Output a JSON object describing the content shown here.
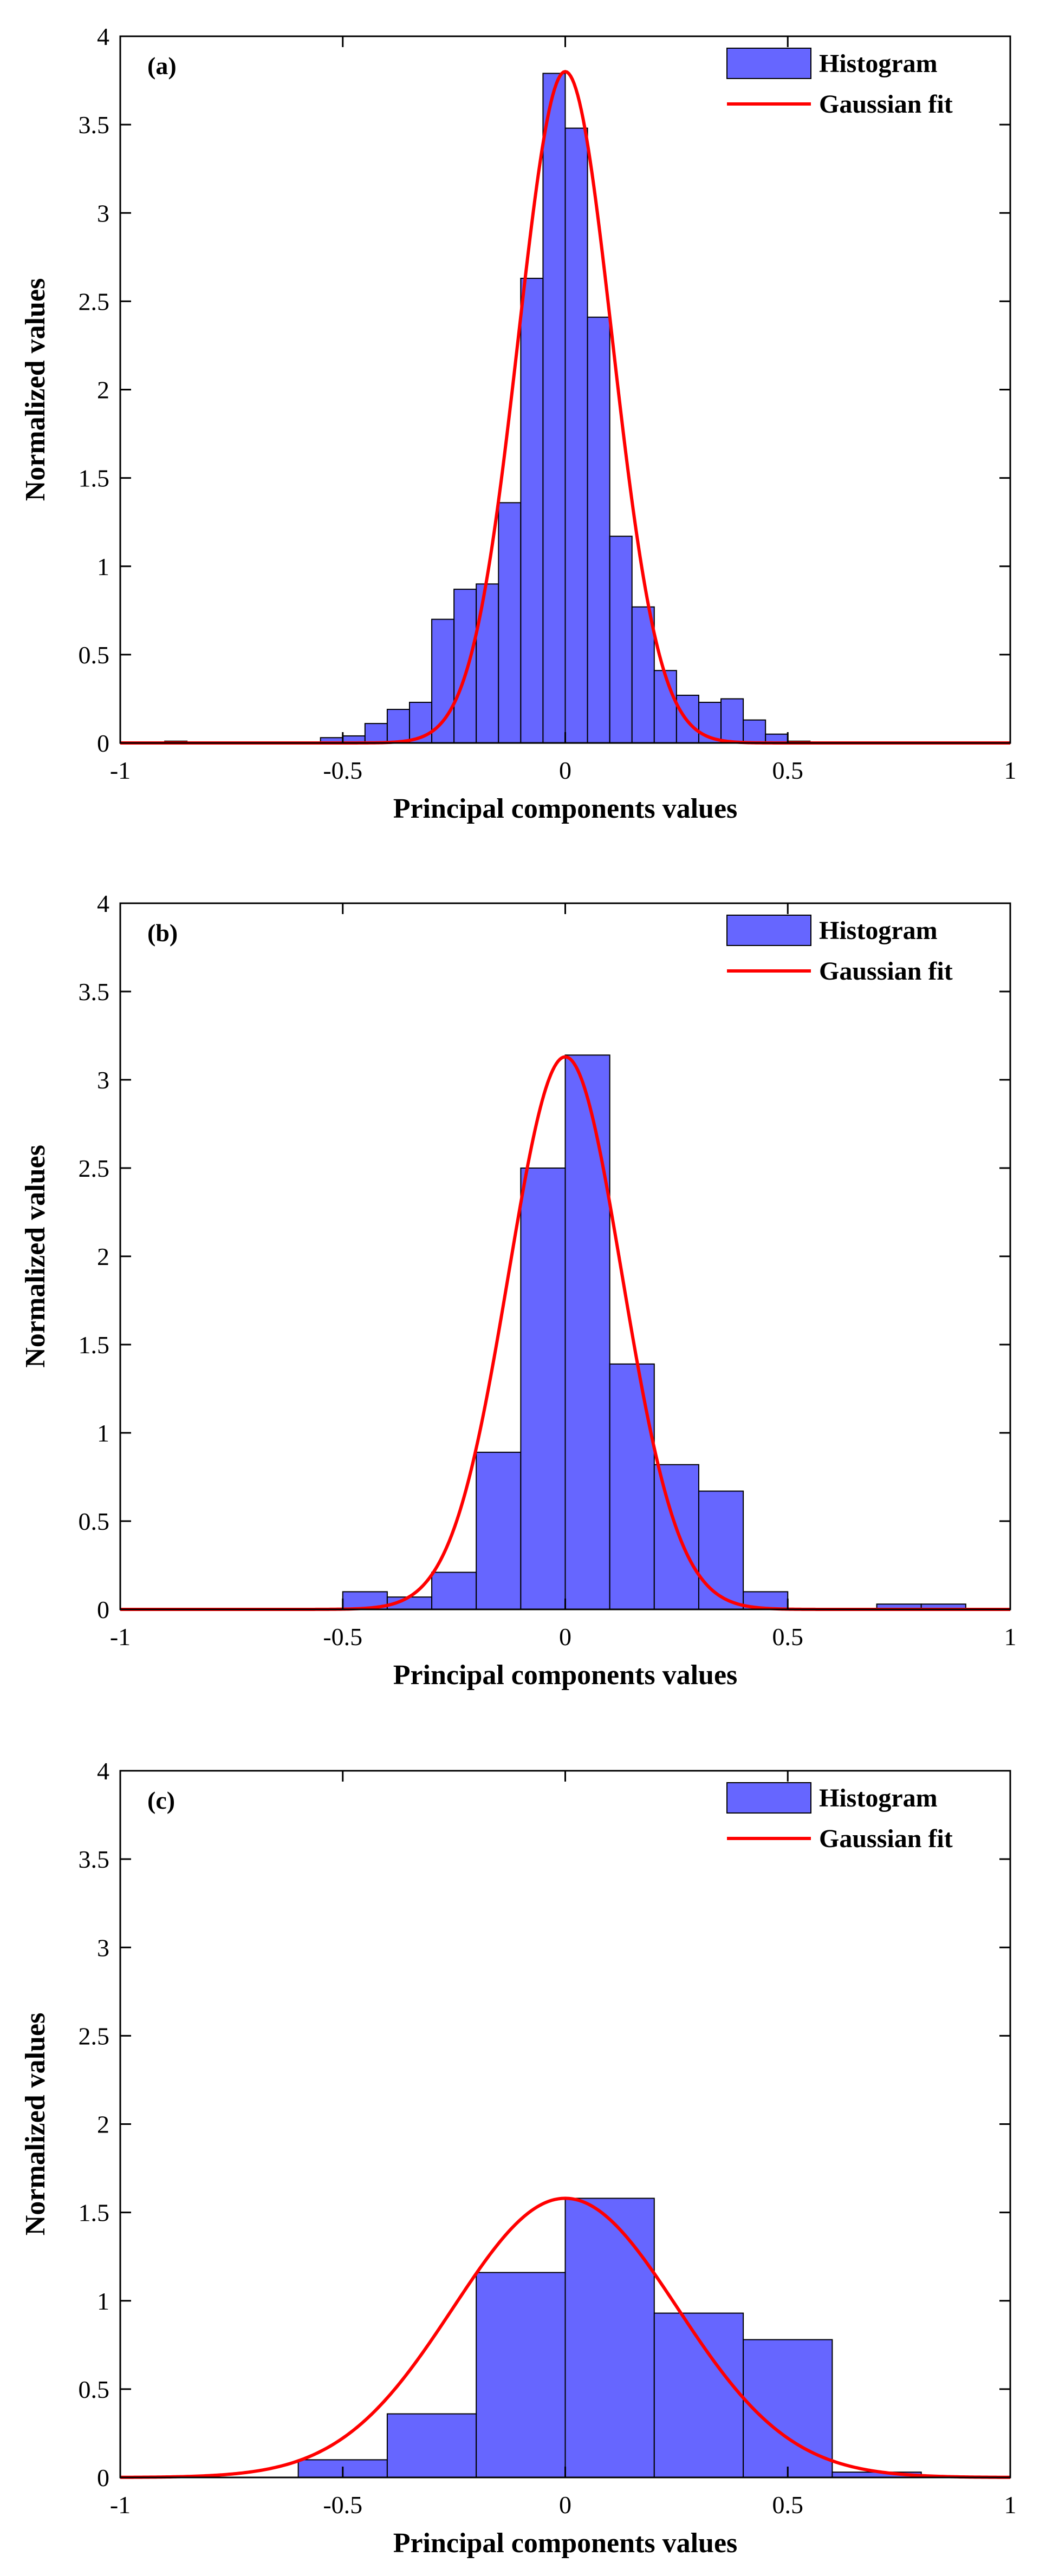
{
  "chart_data": [
    {
      "type": "bar",
      "panel_label": "(a)",
      "xlabel": "Principal components values",
      "ylabel": "Normalized values",
      "xlim": [
        -1,
        1
      ],
      "ylim": [
        0,
        4
      ],
      "xticks": [
        "-1",
        "-0.5",
        "0",
        "0.5",
        "1"
      ],
      "yticks": [
        "0",
        "0.5",
        "1",
        "1.5",
        "2",
        "2.5",
        "3",
        "3.5",
        "4"
      ],
      "legend": {
        "histogram": "Histogram",
        "fit": "Gaussian fit",
        "location": "top-right"
      },
      "colors": {
        "bar": "#6666ff",
        "fit": "#ff0000"
      },
      "histogram": {
        "bin_edges": [
          -0.9,
          -0.85,
          -0.55,
          -0.5,
          -0.45,
          -0.4,
          -0.35,
          -0.3,
          -0.25,
          -0.2,
          -0.15,
          -0.1,
          -0.05,
          0,
          0.05,
          0.1,
          0.15,
          0.2,
          0.25,
          0.3,
          0.35,
          0.4,
          0.45,
          0.5,
          0.55
        ],
        "values": [
          0.01,
          0,
          0.03,
          0.04,
          0.11,
          0.19,
          0.23,
          0.7,
          0.87,
          0.9,
          1.36,
          2.63,
          3.79,
          3.48,
          2.41,
          1.17,
          0.77,
          0.41,
          0.27,
          0.23,
          0.25,
          0.13,
          0.05,
          0.01
        ]
      },
      "gaussian_fit": {
        "mean": 0.0,
        "peak": 3.8
      }
    },
    {
      "type": "bar",
      "panel_label": "(b)",
      "xlabel": "Principal components values",
      "ylabel": "Normalized values",
      "xlim": [
        -1,
        1
      ],
      "ylim": [
        0,
        4
      ],
      "xticks": [
        "-1",
        "-0.5",
        "0",
        "0.5",
        "1"
      ],
      "yticks": [
        "0",
        "0.5",
        "1",
        "1.5",
        "2",
        "2.5",
        "3",
        "3.5",
        "4"
      ],
      "legend": {
        "histogram": "Histogram",
        "fit": "Gaussian fit",
        "location": "top-right"
      },
      "colors": {
        "bar": "#6666ff",
        "fit": "#ff0000"
      },
      "histogram": {
        "bin_edges": [
          -0.5,
          -0.4,
          -0.3,
          -0.2,
          -0.1,
          0,
          0.1,
          0.2,
          0.3,
          0.4,
          0.5,
          0.6,
          0.7,
          0.8,
          0.9
        ],
        "values": [
          0.1,
          0.07,
          0.21,
          0.89,
          2.5,
          3.14,
          1.39,
          0.82,
          0.67,
          0.1,
          0,
          0,
          0.03,
          0.03
        ]
      },
      "gaussian_fit": {
        "mean": 0.0,
        "peak": 3.13
      }
    },
    {
      "type": "bar",
      "panel_label": "(c)",
      "xlabel": "Principal components values",
      "ylabel": "Normalized values",
      "xlim": [
        -1,
        1
      ],
      "ylim": [
        0,
        4
      ],
      "xticks": [
        "-1",
        "-0.5",
        "0",
        "0.5",
        "1"
      ],
      "yticks": [
        "0",
        "0.5",
        "1",
        "1.5",
        "2",
        "2.5",
        "3",
        "3.5",
        "4"
      ],
      "legend": {
        "histogram": "Histogram",
        "fit": "Gaussian fit",
        "location": "top-right"
      },
      "colors": {
        "bar": "#6666ff",
        "fit": "#ff0000"
      },
      "histogram": {
        "bin_edges": [
          -0.6,
          -0.4,
          -0.2,
          0,
          0.2,
          0.4,
          0.6,
          0.8
        ],
        "values": [
          0.1,
          0.36,
          1.16,
          1.58,
          0.93,
          0.78,
          0.03
        ]
      },
      "gaussian_fit": {
        "mean": 0.0,
        "peak": 1.58
      }
    }
  ]
}
